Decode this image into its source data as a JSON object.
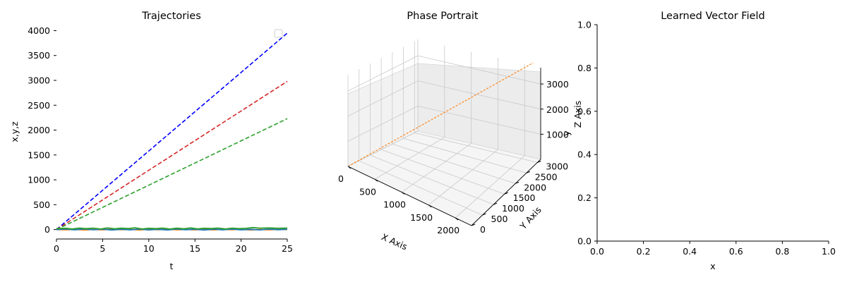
{
  "chart_data": [
    {
      "type": "line",
      "title": "Trajectories",
      "xlabel": "t",
      "ylabel": "x,y,z",
      "xlim": [
        0,
        25
      ],
      "ylim": [
        -190,
        4120
      ],
      "xticks": [
        "0",
        "5",
        "10",
        "15",
        "20",
        "25"
      ],
      "yticks": [
        "0",
        "500",
        "1000",
        "1500",
        "2000",
        "2500",
        "3000",
        "3500",
        "4000"
      ],
      "legend": "top-right",
      "legend_entries": [],
      "grid": false,
      "series": [
        {
          "style": "dashed",
          "color": "#0000ff",
          "x": [
            0,
            25
          ],
          "y": [
            0,
            3950
          ]
        },
        {
          "style": "dashed",
          "color": "#d62728",
          "x": [
            0,
            25
          ],
          "y": [
            0,
            2980
          ]
        },
        {
          "style": "dashed",
          "color": "#2ca02c",
          "x": [
            0,
            25
          ],
          "y": [
            0,
            2230
          ]
        },
        {
          "style": "solid",
          "color": "#ff7f0e",
          "x": [
            0,
            1,
            2,
            3,
            4,
            5,
            6,
            7,
            8,
            9,
            10,
            11,
            12,
            13,
            14,
            15,
            16,
            17,
            18,
            19,
            20,
            21,
            22,
            23,
            24,
            25
          ],
          "y": [
            0,
            -5,
            4,
            -8,
            2,
            -6,
            6,
            -4,
            3,
            -9,
            5,
            -3,
            7,
            -6,
            2,
            -5,
            4,
            -7,
            3,
            -4,
            6,
            -8,
            2,
            -5,
            4,
            0
          ]
        },
        {
          "style": "solid",
          "color": "#1f77b4",
          "x": [
            0,
            1,
            2,
            3,
            4,
            5,
            6,
            7,
            8,
            9,
            10,
            11,
            12,
            13,
            14,
            15,
            16,
            17,
            18,
            19,
            20,
            21,
            22,
            23,
            24,
            25
          ],
          "y": [
            0,
            8,
            -6,
            10,
            -4,
            7,
            -9,
            6,
            -5,
            9,
            -7,
            5,
            -8,
            10,
            -4,
            6,
            -9,
            7,
            -5,
            8,
            -6,
            4,
            -7,
            9,
            -3,
            5
          ]
        },
        {
          "style": "solid",
          "color": "#2ca02c",
          "x": [
            0,
            1,
            1.7,
            2.5,
            3.2,
            4,
            4.8,
            5.5,
            6.3,
            7,
            7.8,
            8.5,
            9.3,
            10,
            10.8,
            11.5,
            12.3,
            13,
            13.8,
            14.5,
            15.3,
            16,
            16.8,
            17.5,
            18.3,
            19,
            19.8,
            20.5,
            21.3,
            22,
            23,
            24,
            25
          ],
          "y": [
            20,
            25,
            12,
            30,
            18,
            28,
            10,
            32,
            15,
            27,
            20,
            35,
            12,
            26,
            18,
            30,
            10,
            28,
            16,
            33,
            14,
            25,
            20,
            30,
            12,
            28,
            18,
            24,
            40,
            28,
            32,
            26,
            30
          ]
        }
      ]
    },
    {
      "type": "line3d",
      "title": "Phase Portrait",
      "xlabel": "X Axis",
      "ylabel": "Y Axis",
      "zlabel": "Z Axis",
      "extra_label": "y",
      "xticks": [
        "0",
        "500",
        "1000",
        "1500",
        "2000"
      ],
      "yticks": [
        "0",
        "500",
        "1000",
        "1500",
        "2000",
        "2500",
        "3000"
      ],
      "zticks": [
        "1000",
        "2000",
        "3000"
      ],
      "series": [
        {
          "style": "dashed",
          "color": "#ff7f0e",
          "x": [
            0,
            2230
          ],
          "y": [
            0,
            2980
          ],
          "z": [
            0,
            3950
          ]
        },
        {
          "style": "solid",
          "color": "#1f77b4",
          "x": [
            0,
            8
          ],
          "y": [
            0,
            6
          ],
          "z": [
            0,
            10
          ]
        }
      ]
    },
    {
      "type": "empty",
      "title": "Learned Vector Field",
      "xlabel": "x",
      "ylabel": "",
      "xlim": [
        0,
        1
      ],
      "ylim": [
        0,
        1
      ],
      "xticks": [
        "0.0",
        "0.2",
        "0.4",
        "0.6",
        "0.8",
        "1.0"
      ],
      "yticks": [
        "0.0",
        "0.2",
        "0.4",
        "0.6",
        "0.8",
        "1.0"
      ]
    }
  ]
}
